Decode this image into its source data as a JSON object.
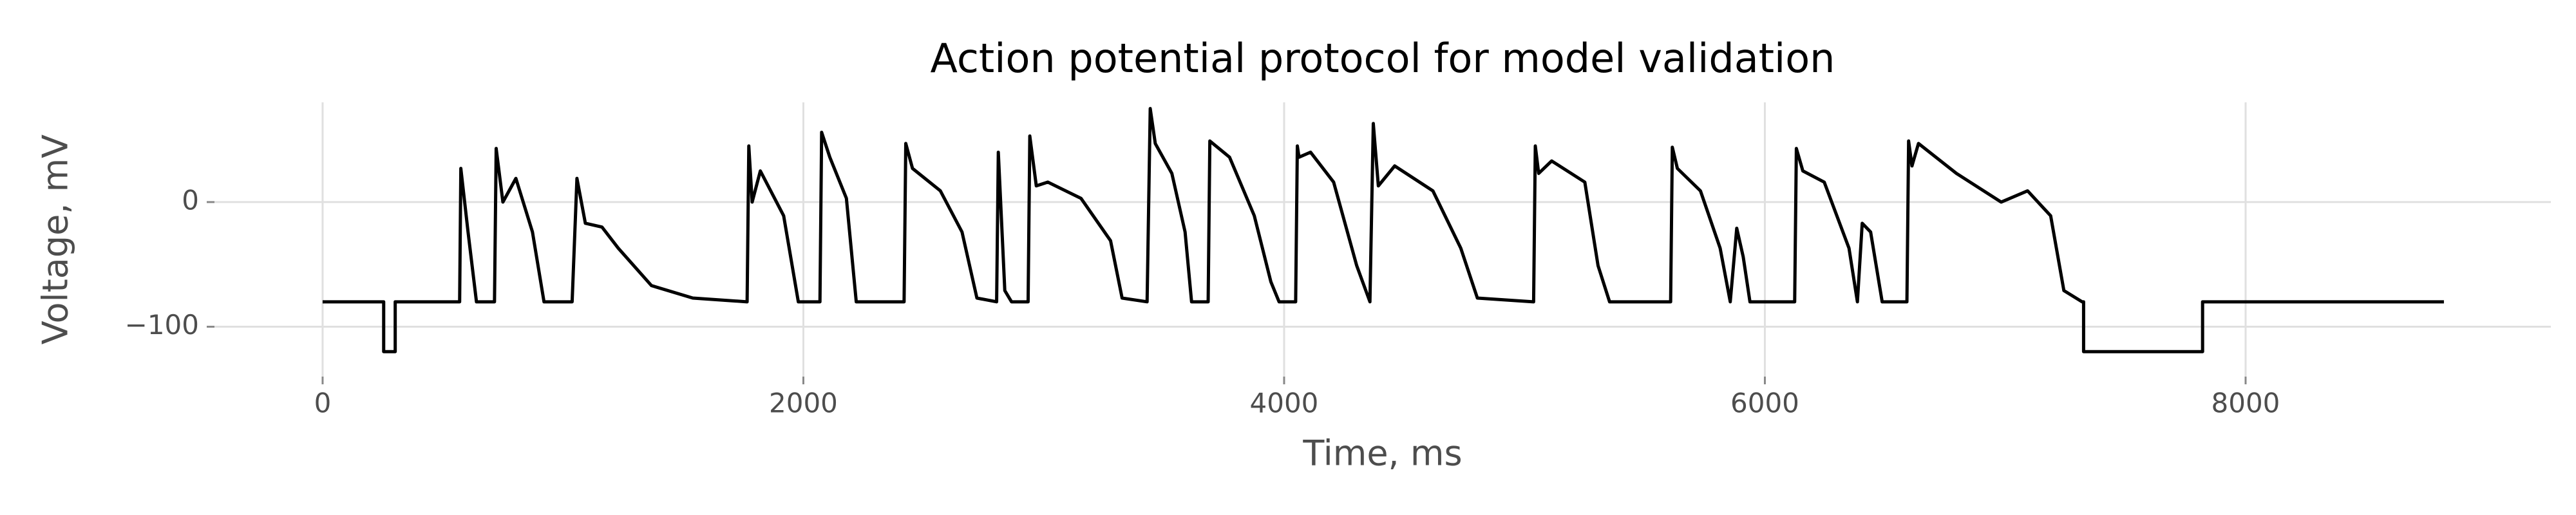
{
  "chart_data": {
    "type": "line",
    "title": "Action potential protocol for model validation",
    "xlabel": "Time, ms",
    "ylabel": "Voltage, mV",
    "color": "#000000",
    "grid": true,
    "xlim": [
      -450,
      9270
    ],
    "ylim": [
      -140,
      80
    ],
    "xticks": [
      0,
      2000,
      4000,
      6000,
      8000
    ],
    "yticks": [
      {
        "value": -100,
        "label": "−100"
      },
      0
    ],
    "x": [
      0,
      254,
      254,
      302,
      302,
      570,
      575,
      605,
      640,
      715,
      722,
      750,
      804,
      873,
      921,
      1038,
      1058,
      1093,
      1162,
      1230,
      1368,
      1540,
      1766,
      1773,
      1787,
      1821,
      1918,
      1979,
      2069,
      2076,
      2110,
      2179,
      2220,
      2419,
      2426,
      2454,
      2570,
      2660,
      2722,
      2804,
      2811,
      2838,
      2866,
      2935,
      2942,
      2969,
      3017,
      3155,
      3278,
      3326,
      3430,
      3443,
      3464,
      3533,
      3588,
      3615,
      3684,
      3691,
      3773,
      3876,
      3945,
      3979,
      4048,
      4055,
      4062,
      4110,
      4206,
      4302,
      4357,
      4371,
      4392,
      4460,
      4619,
      4735,
      4804,
      5038,
      5045,
      5059,
      5113,
      5251,
      5306,
      5354,
      5608,
      5615,
      5636,
      5732,
      5814,
      5856,
      5883,
      5910,
      5938,
      6124,
      6131,
      6158,
      6247,
      6350,
      6385,
      6405,
      6440,
      6488,
      6591,
      6598,
      6612,
      6639,
      6797,
      6983,
      7093,
      7189,
      7244,
      7320,
      7326,
      7326,
      7821,
      7821,
      8825
    ],
    "values": [
      -80,
      -80,
      -120,
      -120,
      -80,
      -80,
      27,
      -24,
      -80,
      -80,
      43,
      0,
      19,
      -24,
      -80,
      -80,
      19,
      -17,
      -20,
      -37,
      -67,
      -77,
      -80,
      45,
      0,
      25,
      -11,
      -80,
      -80,
      56,
      36,
      3,
      -80,
      -80,
      47,
      27,
      9,
      -24,
      -77,
      -80,
      40,
      -71,
      -80,
      -80,
      53,
      13,
      16,
      3,
      -31,
      -77,
      -80,
      75,
      47,
      23,
      -24,
      -80,
      -80,
      49,
      36,
      -11,
      -64,
      -80,
      -80,
      45,
      36,
      40,
      16,
      -51,
      -80,
      63,
      13,
      29,
      9,
      -37,
      -77,
      -80,
      45,
      23,
      33,
      16,
      -51,
      -80,
      -80,
      44,
      27,
      9,
      -37,
      -80,
      -21,
      -44,
      -80,
      -80,
      43,
      25,
      16,
      -37,
      -80,
      -17,
      -24,
      -80,
      -80,
      49,
      29,
      47,
      23,
      0,
      9,
      -11,
      -71,
      -80,
      -80,
      -120,
      -120,
      -80,
      -80
    ]
  }
}
